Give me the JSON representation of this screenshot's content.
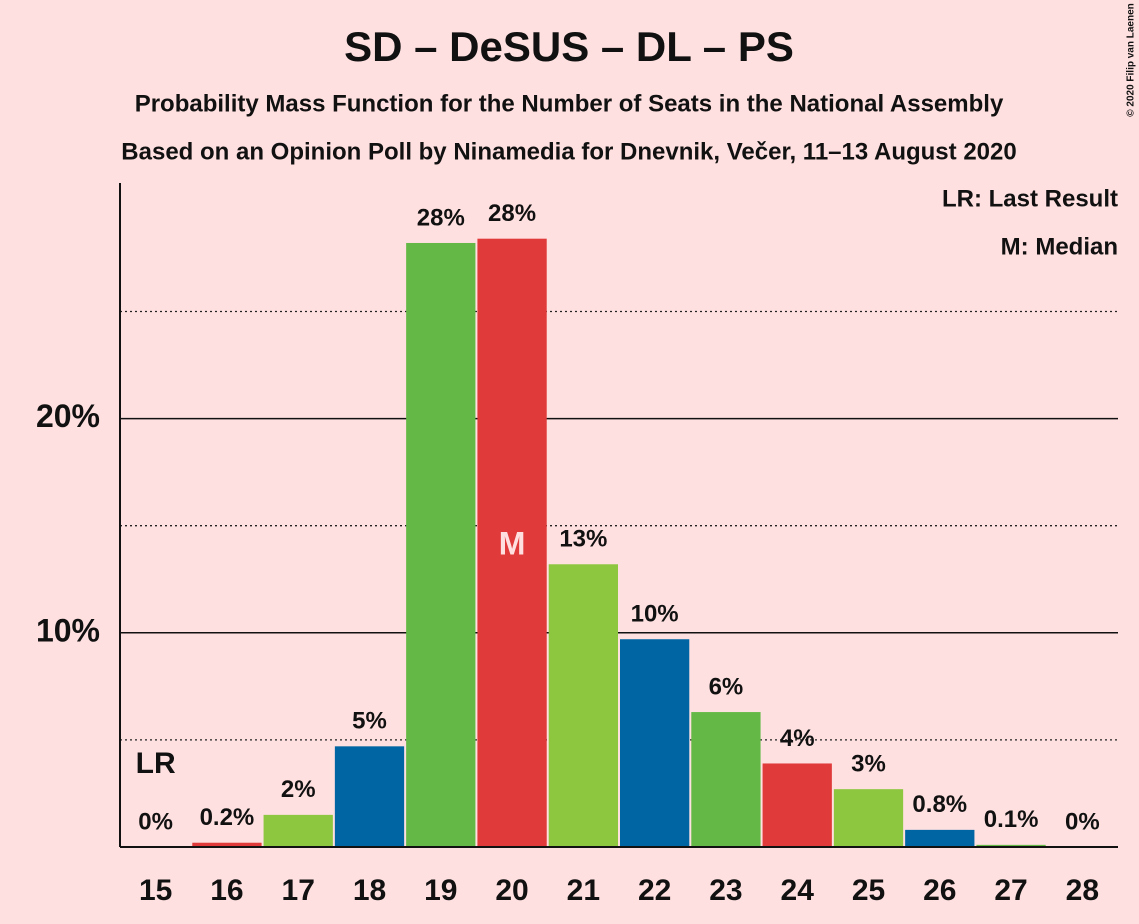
{
  "chart_data": {
    "type": "bar",
    "title": "SD – DeSUS – DL – PS",
    "subtitle": "Probability Mass Function for the Number of Seats in the National Assembly",
    "subtitle2": "Based on an Opinion Poll by Ninamedia for Dnevnik, Večer, 11–13 August 2020",
    "categories": [
      "15",
      "16",
      "17",
      "18",
      "19",
      "20",
      "21",
      "22",
      "23",
      "24",
      "25",
      "26",
      "27",
      "28"
    ],
    "values": [
      0,
      0.2,
      1.5,
      4.7,
      28.2,
      28.4,
      13.2,
      9.7,
      6.3,
      3.9,
      2.7,
      0.8,
      0.1,
      0
    ],
    "value_labels": [
      "0%",
      "0.2%",
      "2%",
      "5%",
      "28%",
      "28%",
      "13%",
      "10%",
      "6%",
      "4%",
      "3%",
      "0.8%",
      "0.1%",
      "0%"
    ],
    "colors": [
      "#64b946",
      "#e03a3a",
      "#8dc63f",
      "#0066a3",
      "#64b946",
      "#e03a3a",
      "#8dc63f",
      "#0066a3",
      "#64b946",
      "#e03a3a",
      "#8dc63f",
      "#0066a3",
      "#64b946",
      "#e03a3a"
    ],
    "ylim": [
      0,
      31
    ],
    "yticks": [
      {
        "value": 10,
        "label": "10%"
      },
      {
        "value": 20,
        "label": "20%"
      }
    ],
    "minor_yticks": [
      5,
      15,
      25
    ],
    "grid": true,
    "last_result_label": "LR",
    "last_result_index": 0,
    "median_label": "M",
    "median_index": 5,
    "legend": [
      "LR: Last Result",
      "M: Median"
    ],
    "copyright": "© 2020 Filip van Laenen"
  }
}
